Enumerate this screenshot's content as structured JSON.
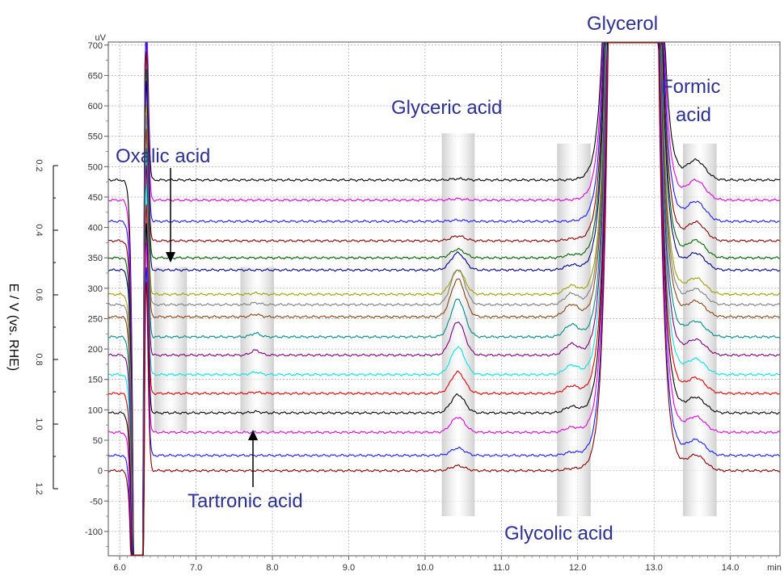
{
  "chart_data": {
    "type": "line",
    "x_unit": "min",
    "y_unit": "uV",
    "xlim": [
      5.85,
      14.65
    ],
    "ylim": [
      -140,
      705
    ],
    "x_ticks": [
      "6.0",
      "7.0",
      "8.0",
      "9.0",
      "10.0",
      "11.0",
      "12.0",
      "13.0",
      "14.0"
    ],
    "y_ticks": [
      "-100",
      "-50",
      "0",
      "50",
      "100",
      "150",
      "200",
      "250",
      "300",
      "350",
      "400",
      "450",
      "500",
      "550",
      "600",
      "650",
      "700"
    ],
    "grid": true,
    "secondary_axis": {
      "label": "E / V (vs. RHE)",
      "ticks": [
        "0.2",
        "0.4",
        "0.6",
        "0.8",
        "1.0",
        "1.2"
      ]
    },
    "series": [
      {
        "potential": 0.2,
        "baseline": 478,
        "color": "#000000",
        "glyceric": 2,
        "glycolic": 0,
        "tartronic": 0,
        "formic": 32,
        "oxalic": 0
      },
      {
        "potential": 0.25,
        "baseline": 445,
        "color": "#e000e0",
        "glyceric": 2,
        "glycolic": 0,
        "tartronic": 0,
        "formic": 32,
        "oxalic": 0
      },
      {
        "potential": 0.3,
        "baseline": 410,
        "color": "#1a1aff",
        "glyceric": 2,
        "glycolic": 0,
        "tartronic": 0,
        "formic": 32,
        "oxalic": 0
      },
      {
        "potential": 0.35,
        "baseline": 378,
        "color": "#8b0000",
        "glyceric": 8,
        "glycolic": 3,
        "tartronic": 0,
        "formic": 30,
        "oxalic": 0
      },
      {
        "potential": 0.4,
        "baseline": 350,
        "color": "#006400",
        "glyceric": 14,
        "glycolic": 5,
        "tartronic": 0,
        "formic": 28,
        "oxalic": 0
      },
      {
        "potential": 0.45,
        "baseline": 330,
        "color": "#00008b",
        "glyceric": 28,
        "glycolic": 8,
        "tartronic": 0,
        "formic": 27,
        "oxalic": 0
      },
      {
        "potential": 0.5,
        "baseline": 290,
        "color": "#a0a000",
        "glyceric": 40,
        "glycolic": 14,
        "tartronic": 2,
        "formic": 26,
        "oxalic": 0
      },
      {
        "potential": 0.55,
        "baseline": 273,
        "color": "#808080",
        "glyceric": 58,
        "glycolic": 18,
        "tartronic": 3,
        "formic": 25,
        "oxalic": 0
      },
      {
        "potential": 0.6,
        "baseline": 253,
        "color": "#8b4513",
        "glyceric": 62,
        "glycolic": 20,
        "tartronic": 4,
        "formic": 25,
        "oxalic": 0
      },
      {
        "potential": 0.65,
        "baseline": 220,
        "color": "#008b8b",
        "glyceric": 62,
        "glycolic": 20,
        "tartronic": 6,
        "formic": 25,
        "oxalic": 0
      },
      {
        "potential": 0.7,
        "baseline": 190,
        "color": "#800080",
        "glyceric": 55,
        "glycolic": 18,
        "tartronic": 8,
        "formic": 25,
        "oxalic": 0
      },
      {
        "potential": 0.75,
        "baseline": 158,
        "color": "#00e5e5",
        "glyceric": 45,
        "glycolic": 15,
        "tartronic": 4,
        "formic": 25,
        "oxalic": 0
      },
      {
        "potential": 0.8,
        "baseline": 127,
        "color": "#e00000",
        "glyceric": 35,
        "glycolic": 12,
        "tartronic": 2,
        "formic": 25,
        "oxalic": 0
      },
      {
        "potential": 0.85,
        "baseline": 95,
        "color": "#000000",
        "glyceric": 30,
        "glycolic": 10,
        "tartronic": 2,
        "formic": 25,
        "oxalic": 0
      },
      {
        "potential": 0.9,
        "baseline": 63,
        "color": "#e000e0",
        "glyceric": 25,
        "glycolic": 8,
        "tartronic": 0,
        "formic": 25,
        "oxalic": 0
      },
      {
        "potential": 0.95,
        "baseline": 25,
        "color": "#1a1aff",
        "glyceric": 12,
        "glycolic": 5,
        "tartronic": 0,
        "formic": 25,
        "oxalic": 0
      },
      {
        "potential": 1.0,
        "baseline": 0,
        "color": "#8b0000",
        "glyceric": 8,
        "glycolic": 3,
        "tartronic": 0,
        "formic": 25,
        "oxalic": 0
      }
    ],
    "peaks": [
      {
        "name": "Oxalic acid",
        "x": 6.7
      },
      {
        "name": "Tartronic acid",
        "x": 7.8
      },
      {
        "name": "Glyceric acid",
        "x": 10.43
      },
      {
        "name": "Glycolic acid",
        "x": 11.95
      },
      {
        "name": "Glycerol",
        "x": 12.45
      },
      {
        "name": "Formic acid",
        "x": 13.6
      }
    ],
    "annotations": {
      "glycerol": "Glycerol",
      "glyceric": "Glyceric acid",
      "formic_line1": "Formic",
      "formic_line2": "acid",
      "oxalic": "Oxalic acid",
      "tartronic": "Tartronic acid",
      "glycolic": "Glycolic acid"
    }
  }
}
